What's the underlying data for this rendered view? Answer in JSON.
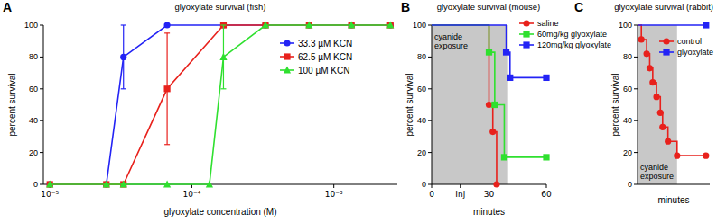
{
  "chart_data": [
    {
      "panel": "A",
      "type": "line",
      "title": "glyoxylate survival (fish)",
      "x_label": "glyoxylate concentration (M)",
      "y_label": "percent survival",
      "log": "x",
      "xlim": [
        9e-06,
        0.0028
      ],
      "xticks": [
        {
          "value": 1e-05,
          "label": "10⁻⁵"
        },
        {
          "value": 0.0001,
          "label": "10⁻⁴"
        },
        {
          "value": 0.001,
          "label": "10⁻³"
        }
      ],
      "ylim": [
        0,
        100
      ],
      "yticks": [
        0,
        20,
        40,
        60,
        80,
        100
      ],
      "legend": "right",
      "series": [
        {
          "name": "33.3 µM KCN",
          "color": "#2323f5",
          "marker": "circle",
          "x": [
            1e-05,
            2.5e-05,
            3.3e-05,
            6.7e-05,
            0.000167,
            0.00033,
            0.00067,
            0.00133,
            0.0025
          ],
          "values": [
            0,
            0,
            80,
            100,
            100,
            100,
            100,
            100,
            100
          ],
          "errors": [
            null,
            null,
            20,
            null,
            null,
            null,
            null,
            null,
            null
          ]
        },
        {
          "name": "62.5 µM KCN",
          "color": "#e8211c",
          "marker": "square",
          "x": [
            1e-05,
            2.5e-05,
            3.3e-05,
            6.7e-05,
            0.000167,
            0.00033,
            0.00067,
            0.00133,
            0.0025
          ],
          "values": [
            0,
            0,
            0,
            60,
            100,
            100,
            100,
            100,
            100
          ],
          "errors": [
            null,
            null,
            null,
            35,
            null,
            null,
            null,
            null,
            null
          ]
        },
        {
          "name": "100 µM KCN",
          "color": "#2fe02f",
          "marker": "triangle",
          "x": [
            1e-05,
            2.5e-05,
            3.3e-05,
            6.7e-05,
            0.000133,
            0.000167,
            0.00033,
            0.00067,
            0.00133,
            0.0025
          ],
          "values": [
            0,
            0,
            0,
            0,
            0,
            80,
            100,
            100,
            100,
            100
          ],
          "errors": [
            null,
            null,
            null,
            null,
            null,
            20,
            null,
            null,
            null,
            null
          ]
        }
      ]
    },
    {
      "panel": "B",
      "type": "step",
      "title": "glyoxylate survival (mouse)",
      "x_label": "minutes",
      "y_label": "percent survival",
      "xlim": [
        0,
        60
      ],
      "xticks": [
        0,
        {
          "value": 15,
          "label": "Inj"
        },
        30,
        60
      ],
      "ylim": [
        0,
        100
      ],
      "yticks": [
        0,
        20,
        40,
        60,
        80,
        100
      ],
      "legend": "upper right",
      "shaded": {
        "from": 0,
        "to": 40,
        "label": [
          "cyanide",
          "exposure"
        ]
      },
      "series": [
        {
          "name": "saline",
          "color": "#e8211c",
          "marker": "circle",
          "x": [
            0,
            30,
            32,
            34
          ],
          "values": [
            100,
            50,
            33,
            0
          ]
        },
        {
          "name": "60mg/kg glyoxylate",
          "color": "#2fe02f",
          "marker": "square",
          "x": [
            0,
            30,
            33,
            38,
            60
          ],
          "values": [
            100,
            83,
            50,
            17,
            17
          ]
        },
        {
          "name": "120mg/kg glyoxylate",
          "color": "#2323f5",
          "marker": "square",
          "x": [
            0,
            39,
            41,
            60
          ],
          "values": [
            100,
            83,
            67,
            67
          ]
        }
      ]
    },
    {
      "panel": "C",
      "type": "step",
      "title": "glyoxylate survival (rabbit)",
      "x_label": "minutes",
      "y_label": "percent survival",
      "xlim": [
        0,
        95
      ],
      "ylim": [
        0,
        100
      ],
      "yticks": [
        0,
        20,
        40,
        60,
        80,
        100
      ],
      "tick_labels": "y",
      "legend": "upper right",
      "shaded": {
        "from": 0,
        "to": 52,
        "label": [
          "cyanide",
          "exposure"
        ]
      },
      "series": [
        {
          "name": "control",
          "color": "#e8211c",
          "marker": "circle",
          "x": [
            0,
            5,
            12,
            16,
            20,
            25,
            30,
            33,
            40,
            52,
            90
          ],
          "values": [
            100,
            91,
            82,
            73,
            64,
            55,
            45,
            36,
            27,
            18,
            18
          ]
        },
        {
          "name": "glyoxylate",
          "color": "#2323f5",
          "marker": "square",
          "x": [
            0,
            90
          ],
          "values": [
            100,
            100
          ]
        }
      ]
    }
  ]
}
